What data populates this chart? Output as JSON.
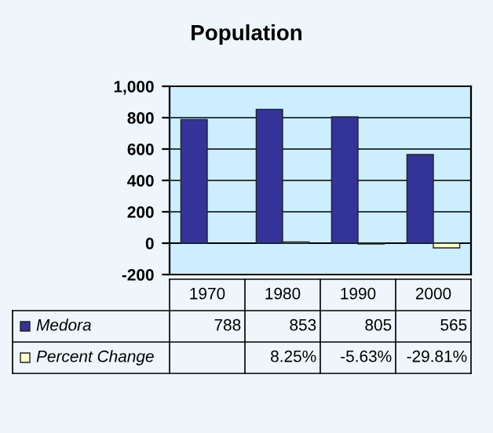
{
  "chart_data": {
    "type": "bar",
    "title": "Population",
    "categories": [
      "1970",
      "1980",
      "1990",
      "2000"
    ],
    "series": [
      {
        "name": "Medora",
        "color": "#333399",
        "values": [
          788,
          853,
          805,
          565
        ],
        "value_labels": [
          "788",
          "853",
          "805",
          "565"
        ]
      },
      {
        "name": "Percent Change",
        "color": "#ffffcc",
        "values": [
          null,
          8.25,
          -5.63,
          -29.81
        ],
        "value_labels": [
          null,
          "8.25%",
          "-5.63%",
          "-29.81%"
        ]
      }
    ],
    "ylim": [
      -200,
      1000
    ],
    "yticks": [
      -200,
      0,
      200,
      400,
      600,
      800,
      {
        "value": 1000,
        "label": "1,000"
      }
    ],
    "grid": "y",
    "legend": "bottom"
  }
}
